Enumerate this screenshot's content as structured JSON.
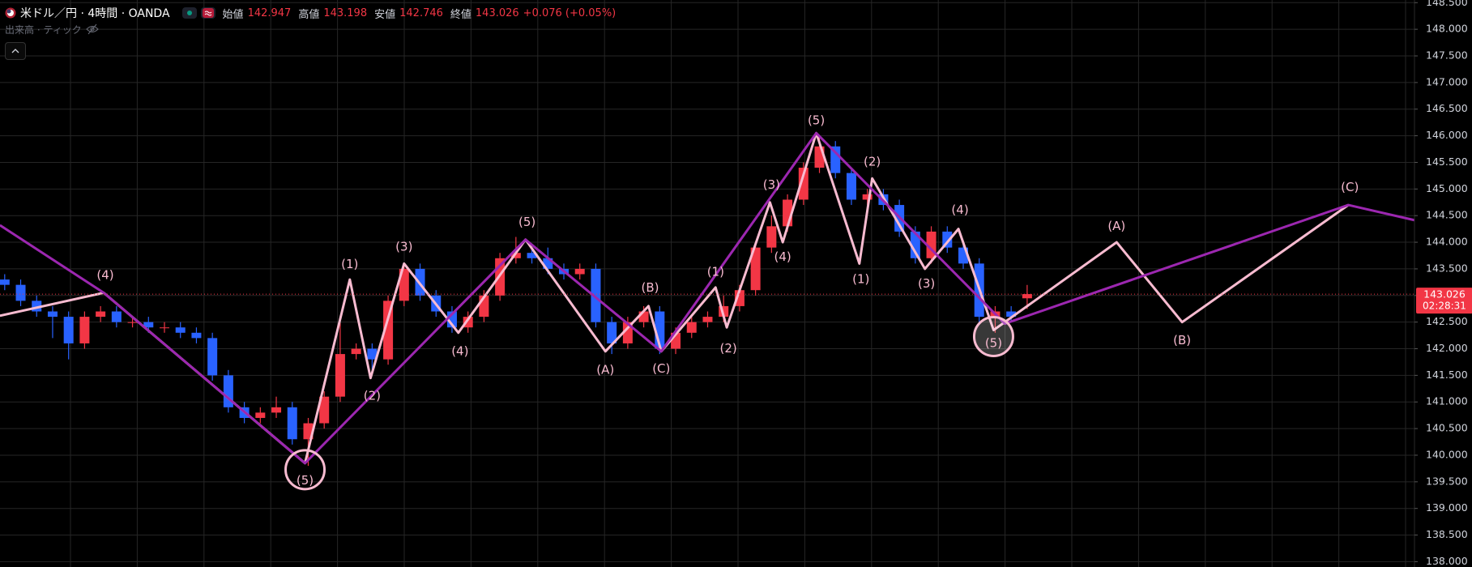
{
  "header": {
    "symbol": "米ドル／円 · 4時間 · OANDA",
    "ohlc_labels": [
      "始値",
      "高値",
      "安値",
      "終値"
    ],
    "change": "+0.076 (+0.05%)",
    "volume_label": "出来高 · ティック"
  },
  "chart_data": {
    "type": "candlestick",
    "up_color": "#f23645",
    "down_color": "#2962ff",
    "grid": true,
    "ylim": [
      137.9,
      148.55
    ],
    "yticks": [
      {
        "value": 138,
        "label": "138.000"
      },
      {
        "value": 138.5,
        "label": "138.500"
      },
      {
        "value": 139,
        "label": "139.000"
      },
      {
        "value": 139.5,
        "label": "139.500"
      },
      {
        "value": 140,
        "label": "140.000"
      },
      {
        "value": 140.5,
        "label": "140.500"
      },
      {
        "value": 141,
        "label": "141.000"
      },
      {
        "value": 141.5,
        "label": "141.500"
      },
      {
        "value": 142,
        "label": "142.000"
      },
      {
        "value": 142.5,
        "label": "142.500"
      },
      {
        "value": 143,
        "label": "143.000"
      },
      {
        "value": 143.5,
        "label": "143.500"
      },
      {
        "value": 144,
        "label": "144.000"
      },
      {
        "value": 144.5,
        "label": "144.500"
      },
      {
        "value": 145,
        "label": "145.000"
      },
      {
        "value": 145.5,
        "label": "145.500"
      },
      {
        "value": 146,
        "label": "146.000"
      },
      {
        "value": 146.5,
        "label": "146.500"
      },
      {
        "value": 147,
        "label": "147.000"
      },
      {
        "value": 147.5,
        "label": "147.500"
      },
      {
        "value": 148,
        "label": "148.000"
      },
      {
        "value": 148.5,
        "label": "148.500"
      }
    ],
    "open": [
      143.3,
      143.2,
      142.9,
      142.7,
      142.6,
      142.1,
      142.6,
      142.7,
      142.5,
      142.5,
      142.4,
      142.4,
      142.3,
      142.2,
      141.5,
      140.9,
      140.7,
      140.8,
      140.9,
      140.3,
      140.6,
      141.1,
      141.9,
      142.0,
      141.8,
      142.9,
      143.5,
      143.0,
      142.7,
      142.4,
      142.6,
      143.0,
      143.7,
      143.8,
      143.7,
      143.5,
      143.4,
      143.5,
      142.5,
      142.1,
      142.5,
      142.7,
      142.0,
      142.3,
      142.5,
      142.6,
      142.8,
      143.1,
      143.9,
      144.3,
      144.8,
      145.4,
      145.8,
      145.3,
      144.8,
      144.9,
      144.7,
      144.2,
      143.7,
      144.2,
      143.9,
      143.6,
      142.6,
      142.7,
      142.947
    ],
    "high": [
      143.4,
      143.3,
      143.0,
      142.8,
      142.7,
      142.7,
      142.8,
      142.8,
      142.6,
      142.6,
      142.5,
      142.5,
      142.4,
      142.3,
      141.6,
      141.0,
      140.9,
      141.1,
      141.0,
      140.7,
      141.2,
      142.5,
      142.1,
      142.1,
      143.0,
      143.6,
      143.6,
      143.1,
      142.8,
      142.7,
      143.1,
      143.8,
      144.1,
      143.9,
      143.9,
      143.6,
      143.6,
      143.6,
      142.6,
      142.6,
      142.8,
      142.8,
      142.4,
      142.6,
      142.7,
      143.0,
      143.2,
      144.0,
      144.5,
      144.9,
      145.5,
      146.0,
      145.9,
      145.4,
      145.0,
      145.0,
      144.8,
      144.3,
      144.3,
      144.3,
      144.0,
      143.7,
      142.8,
      142.8,
      143.198
    ],
    "low": [
      143.1,
      142.8,
      142.6,
      142.2,
      141.8,
      142.0,
      142.5,
      142.4,
      142.4,
      142.3,
      142.3,
      142.2,
      142.1,
      141.4,
      140.8,
      140.6,
      140.6,
      140.7,
      140.2,
      139.8,
      140.5,
      141.0,
      141.8,
      141.6,
      141.7,
      142.8,
      142.9,
      142.6,
      142.3,
      142.3,
      142.5,
      142.9,
      143.6,
      143.6,
      143.4,
      143.3,
      143.3,
      142.4,
      141.9,
      142.0,
      142.4,
      141.9,
      141.9,
      142.2,
      142.4,
      142.5,
      142.7,
      143.0,
      143.8,
      144.2,
      144.7,
      145.3,
      145.2,
      144.7,
      144.7,
      144.6,
      144.1,
      143.6,
      143.6,
      143.8,
      143.5,
      142.5,
      142.3,
      142.5,
      142.746
    ],
    "close": [
      143.2,
      142.9,
      142.7,
      142.6,
      142.1,
      142.6,
      142.7,
      142.5,
      142.5,
      142.4,
      142.4,
      142.3,
      142.2,
      141.5,
      140.9,
      140.7,
      140.8,
      140.9,
      140.3,
      140.6,
      141.1,
      141.9,
      142.0,
      141.8,
      142.9,
      143.5,
      143.0,
      142.7,
      142.4,
      142.6,
      143.0,
      143.7,
      143.8,
      143.7,
      143.5,
      143.4,
      143.5,
      142.5,
      142.1,
      142.5,
      142.7,
      142.0,
      142.3,
      142.5,
      142.6,
      142.8,
      143.1,
      143.9,
      144.3,
      144.8,
      145.4,
      145.8,
      145.3,
      144.8,
      144.9,
      144.7,
      144.2,
      143.7,
      144.2,
      143.9,
      143.6,
      142.6,
      142.7,
      142.6,
      143.026
    ],
    "countdown": "02:28:31",
    "waves": [
      {
        "color": "#f8bbd0",
        "x": [
          -0.3,
          6.2,
          18.8,
          21.6,
          22.9,
          25.0,
          28.4,
          32.6,
          37.6,
          40.3,
          41.1,
          44.5,
          45.2,
          47.9,
          48.7,
          50.8,
          53.5,
          54.3,
          57.6,
          59.7,
          61.9,
          69.6,
          73.7,
          84.1
        ],
        "y": [
          142.62,
          143.05,
          139.85,
          143.3,
          141.45,
          143.6,
          142.3,
          144.05,
          141.95,
          142.8,
          141.95,
          143.15,
          142.4,
          144.75,
          144.0,
          146.05,
          143.6,
          145.2,
          143.5,
          144.25,
          142.35,
          144.0,
          142.5,
          144.7
        ]
      },
      {
        "color": "#9c27b0",
        "x": [
          -0.3,
          6.2,
          18.8,
          32.6,
          41.1,
          50.8,
          62.6,
          84.1,
          91.8
        ],
        "y": [
          144.32,
          143.05,
          139.85,
          144.05,
          141.95,
          146.05,
          142.47,
          144.7,
          144.17
        ]
      }
    ],
    "wave_labels": [
      {
        "text": "(4)",
        "x": 6.3,
        "y": 143.38
      },
      {
        "text": "(5)",
        "x": 18.8,
        "y": 139.52
      },
      {
        "text": "(1)",
        "x": 21.6,
        "y": 143.58
      },
      {
        "text": "(2)",
        "x": 23.0,
        "y": 141.11
      },
      {
        "text": "(3)",
        "x": 25.0,
        "y": 143.91
      },
      {
        "text": "(4)",
        "x": 28.5,
        "y": 141.95
      },
      {
        "text": "(5)",
        "x": 32.7,
        "y": 144.37
      },
      {
        "text": "(A)",
        "x": 37.6,
        "y": 141.6
      },
      {
        "text": "(B)",
        "x": 40.4,
        "y": 143.14
      },
      {
        "text": "(C)",
        "x": 41.1,
        "y": 141.62
      },
      {
        "text": "(1)",
        "x": 44.5,
        "y": 143.44
      },
      {
        "text": "(2)",
        "x": 45.3,
        "y": 142.0
      },
      {
        "text": "(3)",
        "x": 48.0,
        "y": 145.07
      },
      {
        "text": "(4)",
        "x": 48.7,
        "y": 143.72
      },
      {
        "text": "(5)",
        "x": 50.8,
        "y": 146.28
      },
      {
        "text": "(1)",
        "x": 53.6,
        "y": 143.3
      },
      {
        "text": "(2)",
        "x": 54.3,
        "y": 145.51
      },
      {
        "text": "(3)",
        "x": 57.7,
        "y": 143.22
      },
      {
        "text": "(4)",
        "x": 59.8,
        "y": 144.6
      },
      {
        "text": "(5)",
        "x": 61.9,
        "y": 142.1
      },
      {
        "text": "(A)",
        "x": 69.6,
        "y": 144.3
      },
      {
        "text": "(B)",
        "x": 73.7,
        "y": 142.15
      },
      {
        "text": "(C)",
        "x": 84.2,
        "y": 145.03
      }
    ]
  }
}
